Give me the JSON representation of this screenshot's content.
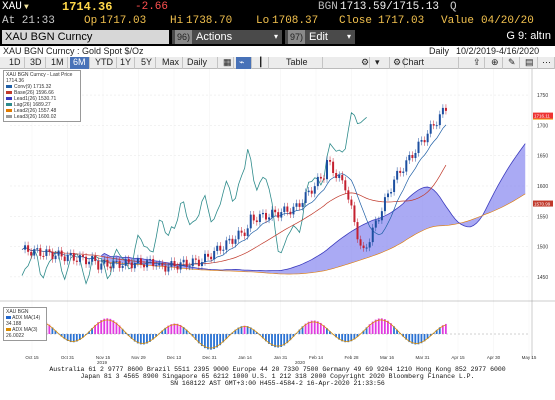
{
  "quote": {
    "ticker": "XAU",
    "last": "1714.36",
    "change": "-2.66",
    "source": "BGN",
    "bid_ask": "1713.59/1715.13",
    "quote_mark": "Q",
    "time": "At 21:33",
    "open_label": "Op",
    "open": "1717.03",
    "high_label": "Hi",
    "high": "1738.70",
    "low_label": "Lo",
    "low": "1708.37",
    "close_label": "Close",
    "close": "1717.03",
    "value_label": "Value",
    "value_date": "04/20/20"
  },
  "function_bar": {
    "security": "XAU BGN Curncy",
    "actions_num": "96)",
    "actions_label": "Actions",
    "edit_num": "97)",
    "edit_label": "Edit",
    "page_label": "G 9: altın"
  },
  "chart_header": {
    "title": "XAU BGN Curncy : Gold Spot  $/Oz",
    "period": "Daily",
    "range": "10/2/2019-4/16/2020"
  },
  "toolbar": {
    "ranges": [
      "1D",
      "3D",
      "1M",
      "6M",
      "YTD",
      "1Y",
      "5Y",
      "Max"
    ],
    "active_range": "6M",
    "frequency": "Daily",
    "table_label": "Table",
    "chart_content_label": "Chart Content"
  },
  "legend": {
    "title": "XAU BGN Curncy - Last Price  1714.36",
    "items": [
      {
        "label": "Conv(9)",
        "value": "1715.32",
        "color": "#1f5fa6"
      },
      {
        "label": "Base(26)",
        "value": "1596.66",
        "color": "#c0392b"
      },
      {
        "label": "Lead1(26)",
        "value": "1530.71",
        "color": "#3b3bbd"
      },
      {
        "label": "Lag(26)",
        "value": "1689.27",
        "color": "#2e8b8b"
      },
      {
        "label": "Lead2(26)",
        "value": "1557.48",
        "color": "#e07b00"
      },
      {
        "label": "Lead3(26)",
        "value": "1600.02",
        "color": "#999999"
      }
    ]
  },
  "sub_legend": {
    "title": "XAU BGN",
    "items": [
      {
        "label": "ADX MA(14)",
        "value": "34.188",
        "color": "#2266cc"
      },
      {
        "label": "ADX MA(3)",
        "value": "26.0022",
        "color": "#d98c00"
      }
    ]
  },
  "price_tags": [
    "1714.36",
    "1716.11",
    "1570.99"
  ],
  "y_axis_ticks": [
    "1750",
    "1700",
    "1650",
    "1600",
    "1550",
    "1500",
    "1450"
  ],
  "x_axis_ticks": [
    "Oct 15",
    "Oct 31",
    "Nov 15",
    "Nov 29",
    "Dec 13",
    "Dec 31",
    "Jan 14",
    "Jan 31",
    "Feb 14",
    "Feb 28",
    "Mar 16",
    "Mar 31",
    "Apr 15",
    "Apr 30",
    "May 15"
  ],
  "x_axis_years": [
    "2019",
    "2020"
  ],
  "footer": {
    "line1": "Australia 61 2 9777 8600 Brazil 5511 2395 9000 Europe 44 20 7330 7500 Germany 49 69 9204 1210 Hong Kong 852 2977 6000",
    "line2": "Japan 81 3 4565 8900          Singapore 65 6212 1000       U.S. 1 212 318 2000          Copyright 2020 Bloomberg Finance L.P.",
    "line3": "SN 168122 AST  GMT+3:00 H455-4584-2 16-Apr-2020 21:33:56"
  },
  "colors": {
    "up_candle": "#1d4fa0",
    "down_candle": "#c4202f",
    "cloud": "#8e8ef0",
    "accent_orange": "#f7a21b"
  }
}
